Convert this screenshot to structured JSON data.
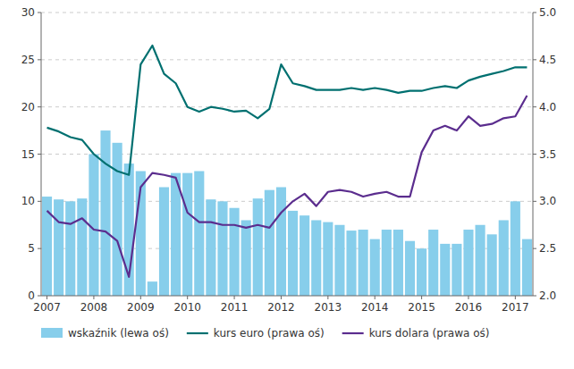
{
  "chart_data": {
    "type": "bar",
    "categories": [
      "2007",
      null,
      null,
      null,
      "2008",
      null,
      null,
      null,
      "2009",
      null,
      null,
      null,
      "2010",
      null,
      null,
      null,
      "2011",
      null,
      null,
      null,
      "2012",
      null,
      null,
      null,
      "2013",
      null,
      null,
      null,
      "2014",
      null,
      null,
      null,
      "2015",
      null,
      null,
      null,
      "2016",
      null,
      null,
      null,
      "2017",
      null
    ],
    "series": [
      {
        "name": "wskaźnik (lewa oś)",
        "type": "bar",
        "color": "#87CEEB",
        "values": [
          10.5,
          10.2,
          10.0,
          10.3,
          15.0,
          17.5,
          16.2,
          14.0,
          13.2,
          1.5,
          11.5,
          13.0,
          13.0,
          13.2,
          10.2,
          10.0,
          9.3,
          8.0,
          10.3,
          11.2,
          11.5,
          9.0,
          8.5,
          8.0,
          7.8,
          7.5,
          6.9,
          7.0,
          6.0,
          7.0,
          7.0,
          5.8,
          5.0,
          7.0,
          5.5,
          5.5,
          7.0,
          7.5,
          6.5,
          8.0,
          10.0,
          6.0
        ]
      },
      {
        "name": "kurs euro (prawa oś)",
        "type": "line",
        "axis": "y2",
        "color": "#007070",
        "values": [
          3.78,
          3.74,
          3.68,
          3.65,
          3.5,
          3.4,
          3.32,
          3.28,
          4.45,
          4.65,
          4.35,
          4.25,
          4.0,
          3.95,
          4.0,
          3.98,
          3.95,
          3.96,
          3.88,
          3.98,
          4.45,
          4.25,
          4.22,
          4.18,
          4.18,
          4.18,
          4.2,
          4.18,
          4.2,
          4.18,
          4.15,
          4.17,
          4.17,
          4.2,
          4.22,
          4.2,
          4.28,
          4.32,
          4.35,
          4.38,
          4.42,
          4.42
        ]
      },
      {
        "name": "kurs dolara (prawa oś)",
        "type": "line",
        "axis": "y2",
        "color": "#5B2D8E",
        "values": [
          2.9,
          2.78,
          2.76,
          2.82,
          2.7,
          2.68,
          2.58,
          2.2,
          3.15,
          3.3,
          3.28,
          3.25,
          2.88,
          2.78,
          2.78,
          2.75,
          2.75,
          2.72,
          2.75,
          2.72,
          2.88,
          3.0,
          3.08,
          2.95,
          3.1,
          3.12,
          3.1,
          3.05,
          3.08,
          3.1,
          3.05,
          3.05,
          3.52,
          3.75,
          3.8,
          3.75,
          3.9,
          3.8,
          3.82,
          3.88,
          3.9,
          4.12
        ]
      }
    ],
    "ylim": [
      0,
      30
    ],
    "yticks": [
      0,
      5,
      10,
      15,
      20,
      25,
      30
    ],
    "y2lim": [
      2.0,
      5.0
    ],
    "y2ticks": [
      {
        "value": 2.0,
        "label": "2.0"
      },
      2.5,
      {
        "value": 3.0,
        "label": "3.0"
      },
      3.5,
      {
        "value": 4.0,
        "label": "4.0"
      },
      4.5,
      {
        "value": 5.0,
        "label": "5.0"
      }
    ],
    "grid": true,
    "legend": "bottom"
  }
}
